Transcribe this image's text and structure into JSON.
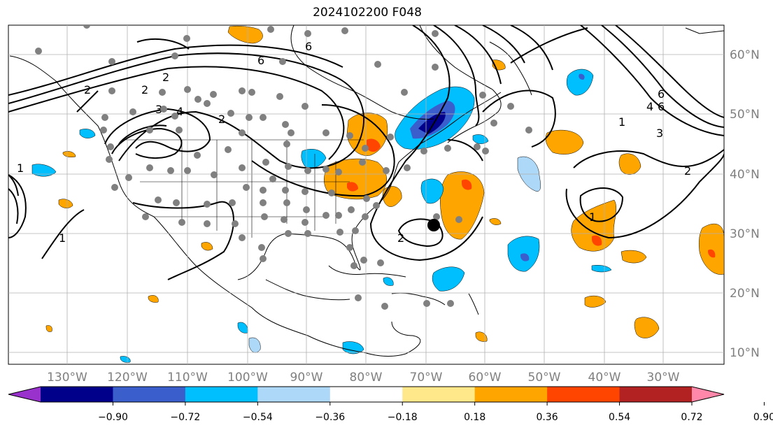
{
  "title": "2024102200 F048",
  "map": {
    "lon_labels": [
      "130°W",
      "120°W",
      "110°W",
      "100°W",
      "90°W",
      "80°W",
      "70°W",
      "60°W",
      "50°W",
      "40°W",
      "30°W"
    ],
    "lat_labels": [
      "60°N",
      "50°N",
      "40°N",
      "30°N",
      "20°N",
      "10°N"
    ],
    "contour_labels": [
      "6",
      "6",
      "6",
      "4",
      "3",
      "2",
      "2",
      "2",
      "1",
      "1",
      "1",
      "1",
      "2",
      "2",
      "6",
      "4",
      "3",
      "2"
    ],
    "center_marker": "black-dot"
  },
  "colorbar": {
    "ticks": [
      "−0.90",
      "−0.72",
      "−0.54",
      "−0.36",
      "−0.18",
      "0.18",
      "0.36",
      "0.54",
      "0.72",
      "0.90"
    ],
    "colors": [
      "#9932cc",
      "#00008b",
      "#3a5fcd",
      "#00bfff",
      "#add8f7",
      "#ffffff",
      "#ffe88a",
      "#ffa500",
      "#ff4500",
      "#b22222",
      "#ff88aa"
    ]
  }
}
